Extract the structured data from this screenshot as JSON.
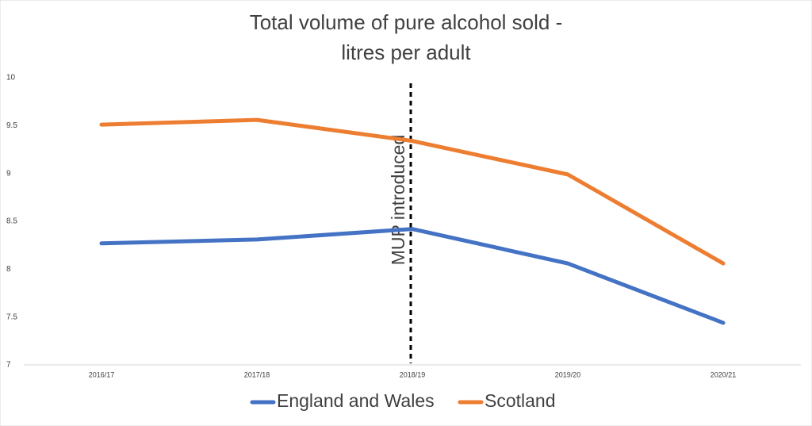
{
  "chart_data": {
    "type": "line",
    "title": [
      "Total volume of pure alcohol sold -",
      "litres per adult"
    ],
    "categories": [
      "2016/17",
      "2017/18",
      "2018/19",
      "2019/20",
      "2020/21"
    ],
    "series": [
      {
        "name": "England and Wales",
        "color": "#4472c4",
        "values": [
          8.27,
          8.31,
          8.42,
          8.06,
          7.44
        ]
      },
      {
        "name": "Scotland",
        "color": "#ed7d31",
        "values": [
          9.51,
          9.56,
          9.34,
          8.99,
          8.06
        ]
      }
    ],
    "ylim": [
      7,
      10
    ],
    "yticks": [
      7,
      7.5,
      8,
      8.5,
      9,
      9.5,
      10
    ],
    "grid": false,
    "annotations": [
      {
        "text": "MUP introduced"
      }
    ],
    "legend": "bottom"
  }
}
